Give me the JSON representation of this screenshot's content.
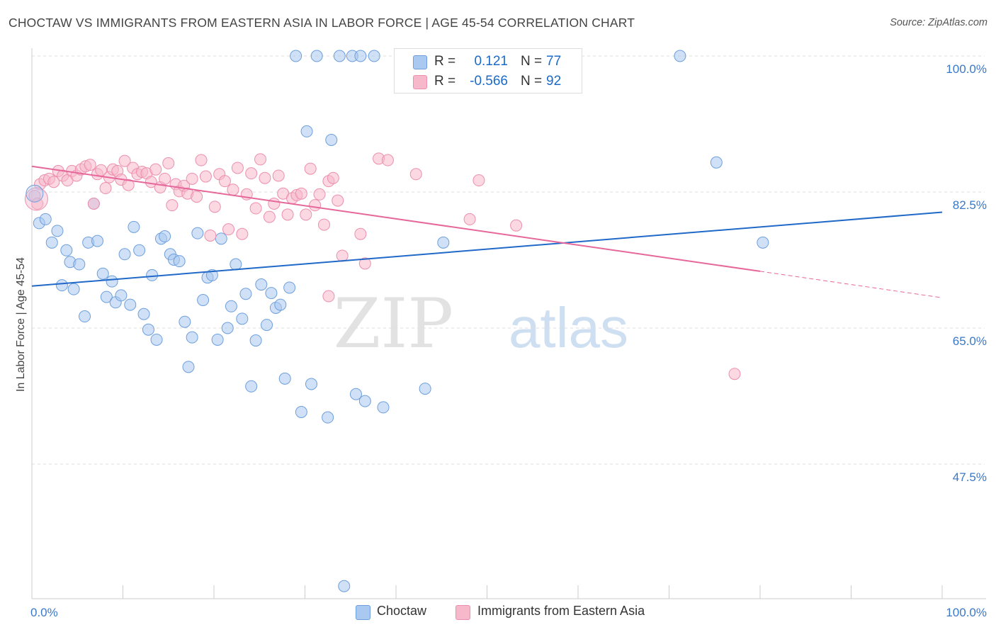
{
  "title": "CHOCTAW VS IMMIGRANTS FROM EASTERN ASIA IN LABOR FORCE | AGE 45-54 CORRELATION CHART",
  "source": "Source: ZipAtlas.com",
  "watermark": {
    "zip": "ZIP",
    "atlas": "atlas"
  },
  "legend": {
    "choctaw": {
      "r_label": "R =",
      "r_value": "0.121",
      "n_label": "N =",
      "n_value": "77"
    },
    "immigrants": {
      "r_label": "R =",
      "r_value": "-0.566",
      "n_label": "N =",
      "n_value": "92"
    }
  },
  "bottom_legend": {
    "choctaw": "Choctaw",
    "immigrants": "Immigrants from Eastern Asia"
  },
  "colors": {
    "choctaw_fill": "#a9c9f0",
    "choctaw_stroke": "#6d9fdc",
    "choctaw_line": "#2169c8",
    "immigrants_fill": "#f7b8cb",
    "immigrants_stroke": "#ec8fae",
    "immigrants_line": "#e6679a",
    "axis_text": "#3b78c8",
    "grid": "#dddddd"
  },
  "chart_data": {
    "type": "scatter",
    "ylabel": "In Labor Force | Age 45-54",
    "xlabel": "",
    "xlim": [
      0,
      100
    ],
    "ylim": [
      30,
      101
    ],
    "x_tick_labels": [
      {
        "value": 0,
        "label": "0.0%"
      },
      {
        "value": 100,
        "label": "100.0%"
      }
    ],
    "y_ticks": [
      {
        "value": 100,
        "label": "100.0%"
      },
      {
        "value": 82.5,
        "label": "82.5%"
      },
      {
        "value": 65,
        "label": "65.0%"
      },
      {
        "value": 47.5,
        "label": "47.5%"
      }
    ],
    "grid": "horizontal dashed",
    "legend_position": "top-center",
    "series": [
      {
        "name": "Choctaw",
        "trend": {
          "x": [
            0,
            100
          ],
          "y": [
            70.4,
            79.9
          ],
          "dashed_from": null
        },
        "points": [
          [
            0.8,
            78.5
          ],
          [
            1.5,
            79
          ],
          [
            2.2,
            76
          ],
          [
            2.8,
            77.5
          ],
          [
            3.3,
            70.5
          ],
          [
            3.8,
            75
          ],
          [
            4.2,
            73.5
          ],
          [
            4.6,
            70
          ],
          [
            5.2,
            73.2
          ],
          [
            5.8,
            66.5
          ],
          [
            6.2,
            76
          ],
          [
            6.8,
            81
          ],
          [
            7.2,
            76.2
          ],
          [
            7.8,
            72
          ],
          [
            8.2,
            69
          ],
          [
            8.8,
            71
          ],
          [
            9.2,
            68.3
          ],
          [
            9.8,
            69.2
          ],
          [
            10.2,
            74.5
          ],
          [
            10.8,
            68
          ],
          [
            11.2,
            78
          ],
          [
            11.8,
            75
          ],
          [
            12.3,
            66.8
          ],
          [
            12.8,
            64.8
          ],
          [
            13.2,
            71.8
          ],
          [
            13.7,
            63.5
          ],
          [
            14.2,
            76.5
          ],
          [
            14.6,
            76.8
          ],
          [
            15.2,
            74.5
          ],
          [
            15.6,
            73.8
          ],
          [
            16.2,
            73.6
          ],
          [
            16.8,
            65.8
          ],
          [
            17.2,
            60
          ],
          [
            17.6,
            63.8
          ],
          [
            18.2,
            77.2
          ],
          [
            18.8,
            68.6
          ],
          [
            19.3,
            71.5
          ],
          [
            19.8,
            71.8
          ],
          [
            20.4,
            63.5
          ],
          [
            20.8,
            76.5
          ],
          [
            21.5,
            65
          ],
          [
            21.9,
            67.8
          ],
          [
            22.4,
            73.2
          ],
          [
            23.1,
            66.2
          ],
          [
            23.5,
            69.4
          ],
          [
            24.1,
            57.5
          ],
          [
            24.6,
            63.4
          ],
          [
            25.2,
            70.6
          ],
          [
            25.8,
            65.4
          ],
          [
            26.3,
            69.5
          ],
          [
            26.8,
            67.6
          ],
          [
            27.3,
            68
          ],
          [
            27.8,
            58.5
          ],
          [
            28.3,
            70.2
          ],
          [
            29.0,
            100
          ],
          [
            29.6,
            54.2
          ],
          [
            30.2,
            90.3
          ],
          [
            30.7,
            57.8
          ],
          [
            31.3,
            100
          ],
          [
            32.5,
            53.5
          ],
          [
            32.9,
            89.2
          ],
          [
            33.8,
            100
          ],
          [
            34.3,
            31.8
          ],
          [
            35.2,
            100
          ],
          [
            35.6,
            56.5
          ],
          [
            36.1,
            100
          ],
          [
            36.6,
            55.6
          ],
          [
            37.6,
            100
          ],
          [
            38.6,
            54.8
          ],
          [
            43.2,
            57.2
          ],
          [
            45.2,
            76
          ],
          [
            71.2,
            100
          ],
          [
            75.2,
            86.3
          ],
          [
            80.3,
            76
          ]
        ]
      },
      {
        "name": "Immigrants from Eastern Asia",
        "trend": {
          "x": [
            0,
            80,
            100
          ],
          "y": [
            85.8,
            72.3,
            68.9
          ],
          "dashed_from": 80
        },
        "points": [
          [
            0.3,
            82
          ],
          [
            0.6,
            81
          ],
          [
            0.9,
            83.5
          ],
          [
            1.4,
            84
          ],
          [
            1.9,
            84.2
          ],
          [
            2.4,
            83.8
          ],
          [
            2.9,
            85.2
          ],
          [
            3.4,
            84.6
          ],
          [
            3.9,
            84
          ],
          [
            4.4,
            85.2
          ],
          [
            4.9,
            84.6
          ],
          [
            5.4,
            85.4
          ],
          [
            5.9,
            85.8
          ],
          [
            6.4,
            86
          ],
          [
            6.8,
            81
          ],
          [
            7.2,
            84.8
          ],
          [
            7.6,
            85.3
          ],
          [
            8.1,
            83
          ],
          [
            8.5,
            84.4
          ],
          [
            8.9,
            85.4
          ],
          [
            9.4,
            85.2
          ],
          [
            9.8,
            84.1
          ],
          [
            10.2,
            86.5
          ],
          [
            10.6,
            83.4
          ],
          [
            11.1,
            85.6
          ],
          [
            11.6,
            84.8
          ],
          [
            12.1,
            85.1
          ],
          [
            12.6,
            84.9
          ],
          [
            13.1,
            83.8
          ],
          [
            13.6,
            85.4
          ],
          [
            14.1,
            83.1
          ],
          [
            14.6,
            84.2
          ],
          [
            15.0,
            86.2
          ],
          [
            15.4,
            80.8
          ],
          [
            15.8,
            83.5
          ],
          [
            16.2,
            82.6
          ],
          [
            16.7,
            83.3
          ],
          [
            17.1,
            82.3
          ],
          [
            17.6,
            84.2
          ],
          [
            18.1,
            81.9
          ],
          [
            18.6,
            86.6
          ],
          [
            19.1,
            84.5
          ],
          [
            19.6,
            76.9
          ],
          [
            20.1,
            80.6
          ],
          [
            20.6,
            84.8
          ],
          [
            21.2,
            83.9
          ],
          [
            21.6,
            77.7
          ],
          [
            22.1,
            82.8
          ],
          [
            22.6,
            85.6
          ],
          [
            23.1,
            77.1
          ],
          [
            23.6,
            82.2
          ],
          [
            24.1,
            84.9
          ],
          [
            24.6,
            80.4
          ],
          [
            25.1,
            86.7
          ],
          [
            25.6,
            84.3
          ],
          [
            26.1,
            79.3
          ],
          [
            26.6,
            81
          ],
          [
            27.1,
            84.6
          ],
          [
            27.6,
            82.3
          ],
          [
            28.1,
            79.6
          ],
          [
            28.6,
            81.7
          ],
          [
            29.1,
            82.1
          ],
          [
            29.6,
            82.3
          ],
          [
            30.1,
            79.6
          ],
          [
            30.6,
            85.5
          ],
          [
            31.1,
            80.8
          ],
          [
            31.6,
            82.2
          ],
          [
            32.1,
            78.3
          ],
          [
            32.6,
            83.9
          ],
          [
            33.1,
            84.3
          ],
          [
            33.6,
            81.4
          ],
          [
            34.1,
            74.3
          ],
          [
            36.1,
            77.1
          ],
          [
            36.6,
            73.3
          ],
          [
            38.1,
            86.8
          ],
          [
            39.1,
            86.6
          ],
          [
            42.2,
            84.8
          ],
          [
            48.1,
            79
          ],
          [
            49.1,
            84
          ],
          [
            53.2,
            78.2
          ],
          [
            77.2,
            59.1
          ],
          [
            32.6,
            69.1
          ]
        ]
      }
    ]
  }
}
